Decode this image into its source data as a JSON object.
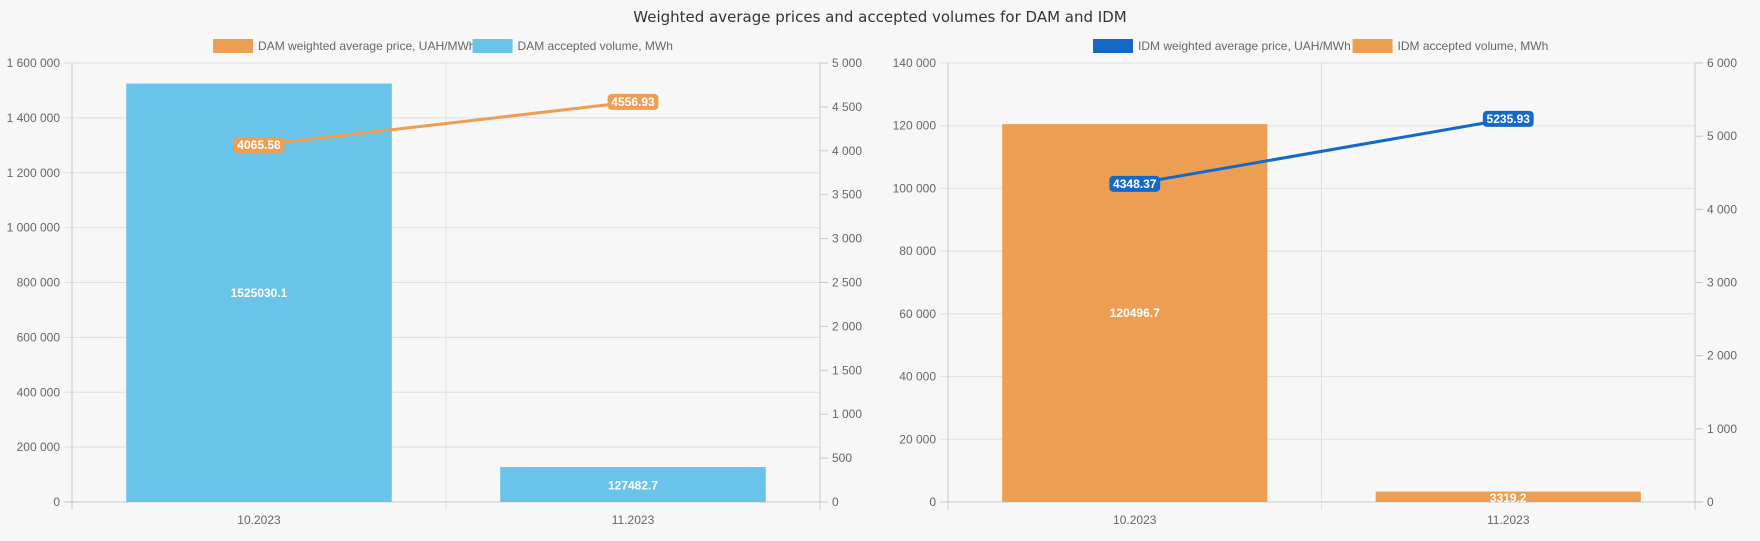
{
  "page_title": "Weighted average prices and accepted volumes for DAM and IDM",
  "chart_data": [
    {
      "type": "bar+line",
      "title": "",
      "categories": [
        "10.2023",
        "11.2023"
      ],
      "legend_position": "top-center",
      "grid": true,
      "series": [
        {
          "name": "DAM weighted average price, UAH/MWh",
          "type": "line",
          "axis": "right",
          "color": "#ec9e53",
          "values": [
            4065.58,
            4556.93
          ],
          "labels": [
            "4065.58",
            "4556.93"
          ]
        },
        {
          "name": "DAM accepted volume, MWh",
          "type": "bar",
          "axis": "left",
          "color": "#6ac3e8",
          "values": [
            1525030.1,
            127482.7
          ],
          "labels": [
            "1525030.1",
            "127482.7"
          ]
        }
      ],
      "left_axis": {
        "ylim": [
          0,
          1600000
        ],
        "ticks": [
          0,
          200000,
          400000,
          600000,
          800000,
          1000000,
          1200000,
          1400000,
          1600000
        ],
        "tick_labels": [
          "0",
          "200 000",
          "400 000",
          "600 000",
          "800 000",
          "1 000 000",
          "1 200 000",
          "1 400 000",
          "1 600 000"
        ]
      },
      "right_axis": {
        "ylim": [
          0,
          5000
        ],
        "ticks": [
          0,
          500,
          1000,
          1500,
          2000,
          2500,
          3000,
          3500,
          4000,
          4500,
          5000
        ],
        "tick_labels": [
          "0",
          "500",
          "1 000",
          "1 500",
          "2 000",
          "2 500",
          "3 000",
          "3 500",
          "4 000",
          "4 500",
          "5 000"
        ]
      }
    },
    {
      "type": "bar+line",
      "title": "",
      "categories": [
        "10.2023",
        "11.2023"
      ],
      "legend_position": "top-center",
      "grid": true,
      "series": [
        {
          "name": "IDM weighted average price, UAH/MWh",
          "type": "line",
          "axis": "right",
          "color": "#1469c7",
          "values": [
            4348.37,
            5235.93
          ],
          "labels": [
            "4348.37",
            "5235.93"
          ]
        },
        {
          "name": "IDM accepted volume, MWh",
          "type": "bar",
          "axis": "left",
          "color": "#ec9e53",
          "values": [
            120496.7,
            3319.2
          ],
          "labels": [
            "120496.7",
            "3319.2"
          ]
        }
      ],
      "left_axis": {
        "ylim": [
          0,
          140000
        ],
        "ticks": [
          0,
          20000,
          40000,
          60000,
          80000,
          100000,
          120000,
          140000
        ],
        "tick_labels": [
          "0",
          "20 000",
          "40 000",
          "60 000",
          "80 000",
          "100 000",
          "120 000",
          "140 000"
        ]
      },
      "right_axis": {
        "ylim": [
          0,
          6000
        ],
        "ticks": [
          0,
          1000,
          2000,
          3000,
          4000,
          5000,
          6000
        ],
        "tick_labels": [
          "0",
          "1 000",
          "2 000",
          "3 000",
          "4 000",
          "5 000",
          "6 000"
        ]
      }
    }
  ]
}
